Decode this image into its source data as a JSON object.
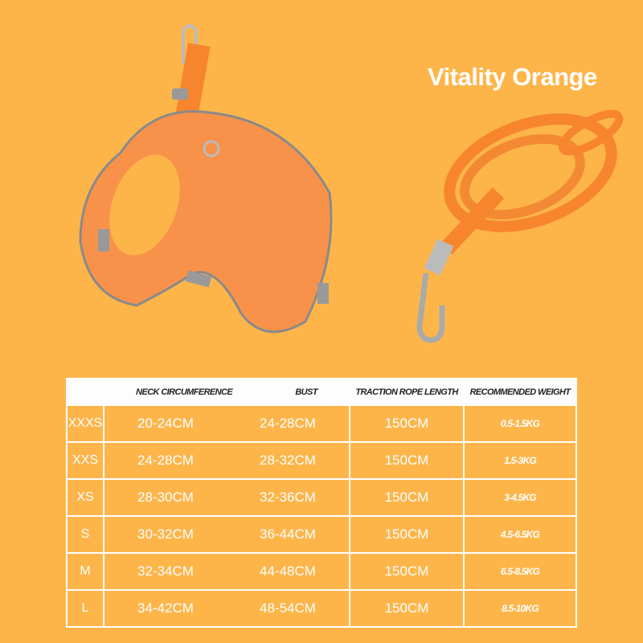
{
  "title": "Vitality Orange",
  "colors": {
    "background": "#fdb54a",
    "product": "#f7852e",
    "text": "#ffffff"
  },
  "products": [
    "harness",
    "leash"
  ],
  "table": {
    "headers": [
      "",
      "NECK CIRCUMFERENCE",
      "BUST",
      "TRACTION ROPE LENGTH",
      "RECOMMENDED WEIGHT"
    ],
    "rows": [
      {
        "size": "XXXS",
        "neck": "20-24CM",
        "bust": "24-28CM",
        "rope": "150CM",
        "weight": "0.5-1.5KG"
      },
      {
        "size": "XXS",
        "neck": "24-28CM",
        "bust": "28-32CM",
        "rope": "150CM",
        "weight": "1.5-3KG"
      },
      {
        "size": "XS",
        "neck": "28-30CM",
        "bust": "32-36CM",
        "rope": "150CM",
        "weight": "3-4.5KG"
      },
      {
        "size": "S",
        "neck": "30-32CM",
        "bust": "36-44CM",
        "rope": "150CM",
        "weight": "4.5-6.5KG"
      },
      {
        "size": "M",
        "neck": "32-34CM",
        "bust": "44-48CM",
        "rope": "150CM",
        "weight": "6.5-8.5KG"
      },
      {
        "size": "L",
        "neck": "34-42CM",
        "bust": "48-54CM",
        "rope": "150CM",
        "weight": "8.5-10KG"
      }
    ]
  }
}
